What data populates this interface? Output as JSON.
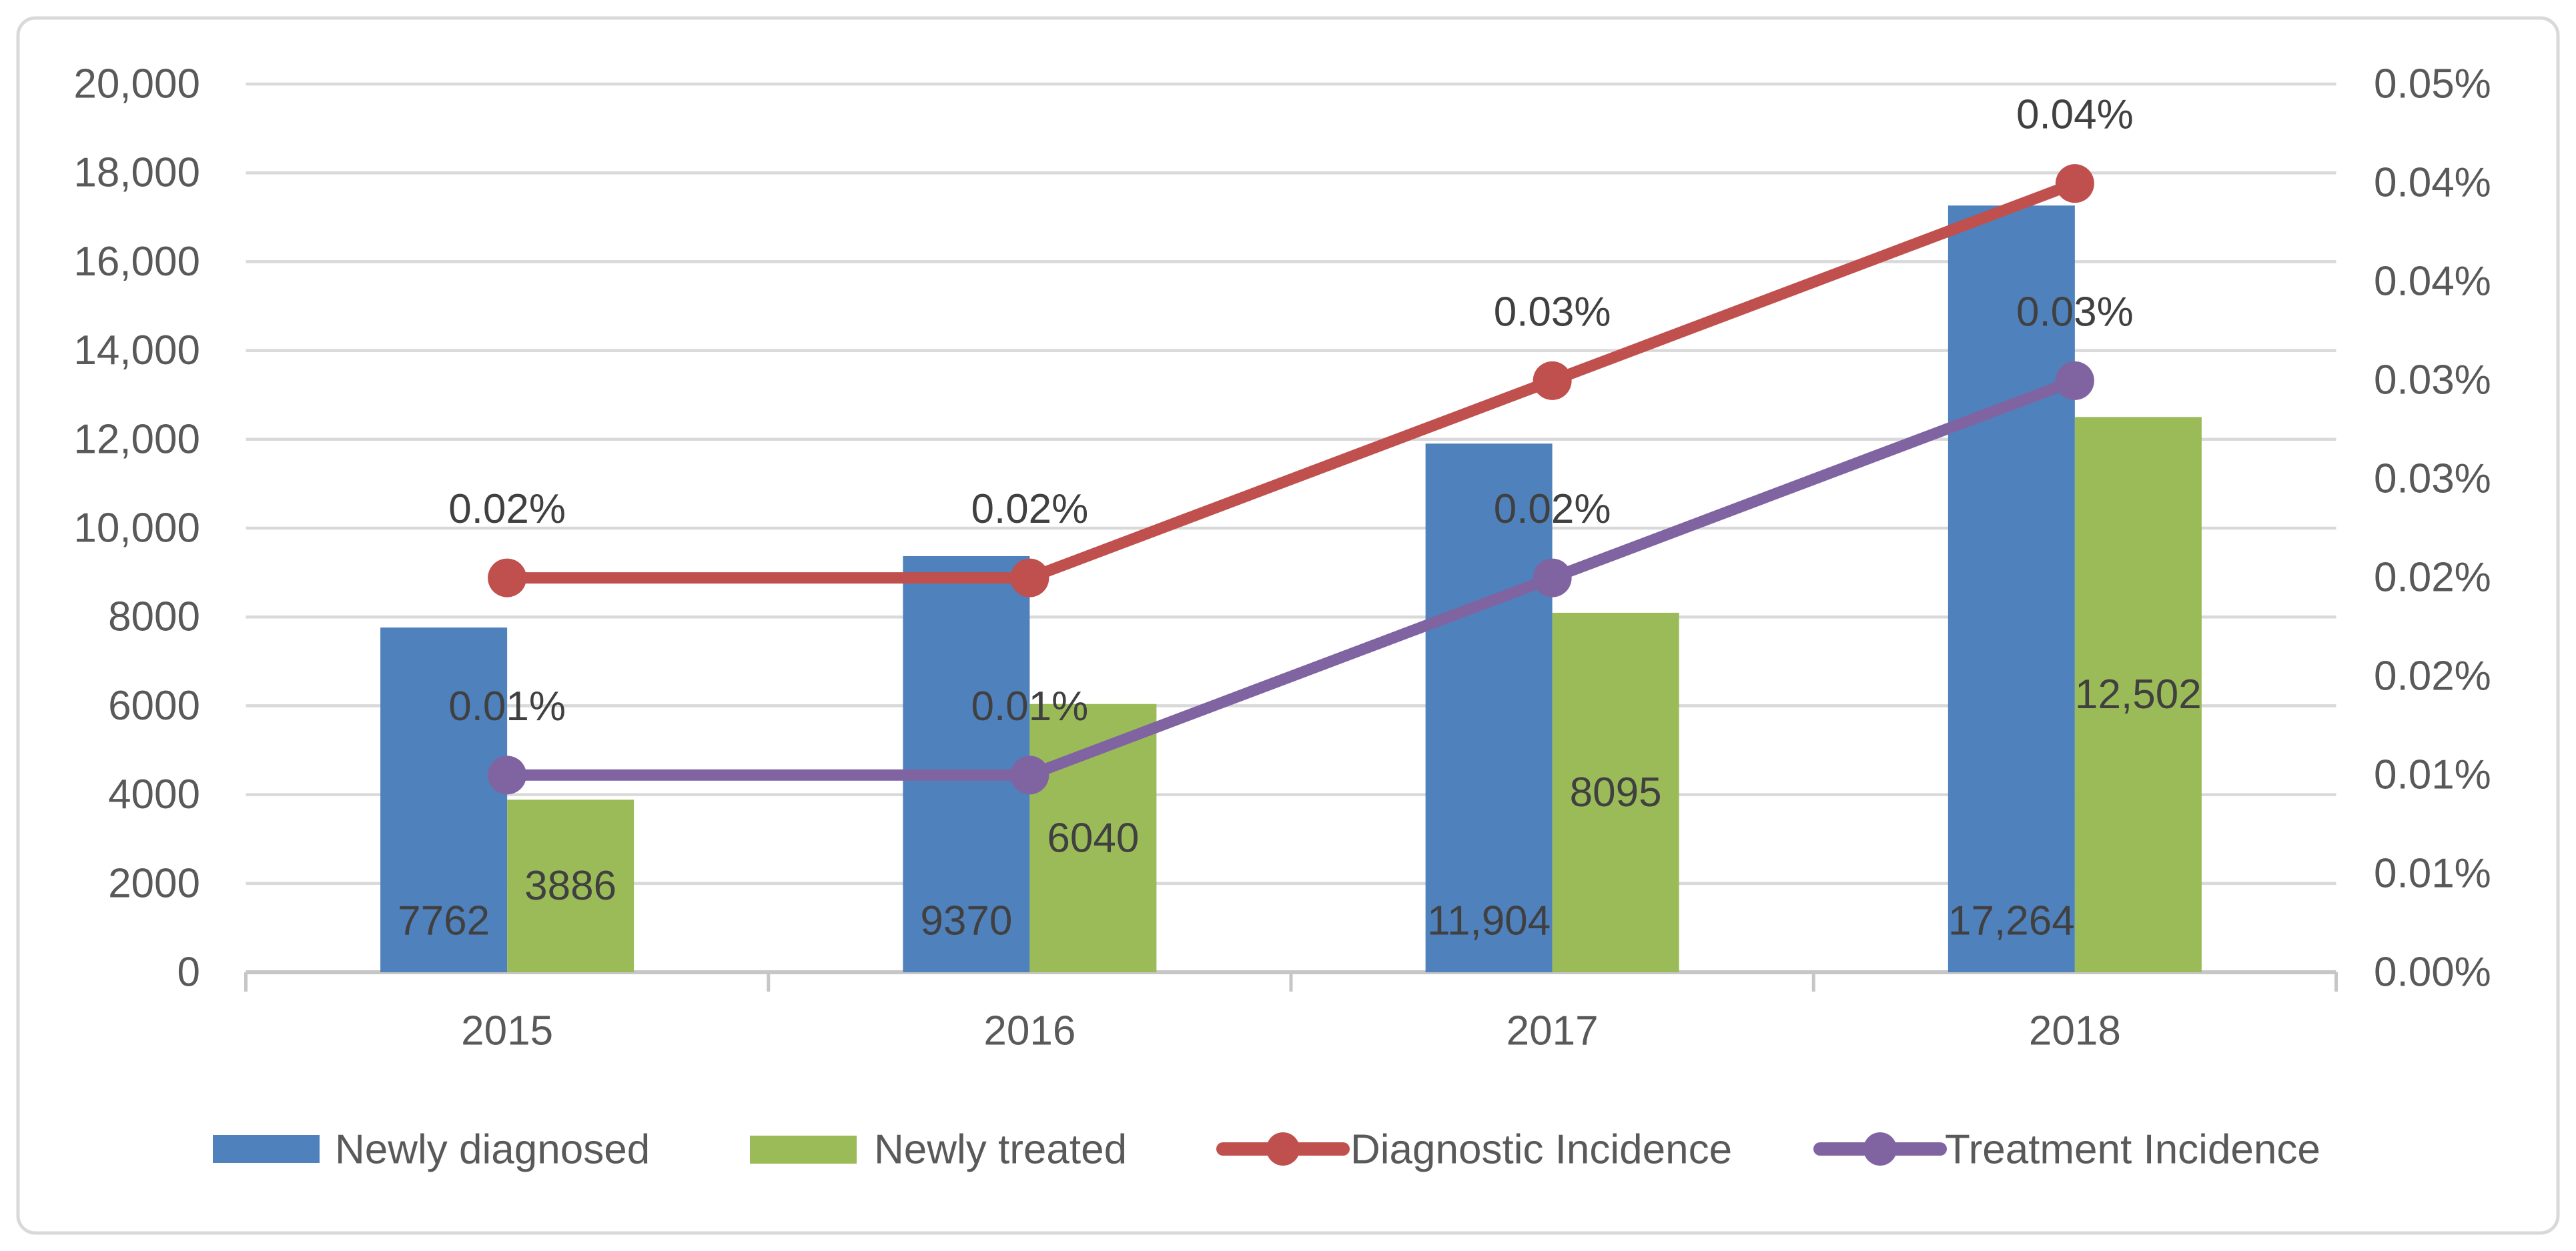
{
  "chart_data": {
    "type": "combo-bar-line",
    "title": "",
    "categories": [
      "2015",
      "2016",
      "2017",
      "2018"
    ],
    "bar_series": [
      {
        "name": "Newly diagnosed",
        "color": "#4f81bd",
        "axis": "left",
        "values": [
          7762,
          9370,
          11904,
          17264
        ],
        "data_labels": [
          "7762",
          "9370",
          "11,904",
          "17,264"
        ],
        "label_placement": "inside-base"
      },
      {
        "name": "Newly treated",
        "color": "#9bbb59",
        "axis": "left",
        "values": [
          3886,
          6040,
          8095,
          12502
        ],
        "data_labels": [
          "3886",
          "6040",
          "8095",
          "12,502"
        ],
        "label_placement": "inside-center"
      }
    ],
    "line_series": [
      {
        "name": "Diagnostic Incidence",
        "color": "#c0504d",
        "axis": "right",
        "values_pct": [
          0.0222,
          0.0222,
          0.0333,
          0.0444
        ],
        "data_labels": [
          "0.02%",
          "0.02%",
          "0.03%",
          "0.04%"
        ]
      },
      {
        "name": "Treatment Incidence",
        "color": "#8064a2",
        "axis": "right",
        "values_pct": [
          0.0111,
          0.0111,
          0.0222,
          0.0333
        ],
        "data_labels": [
          "0.01%",
          "0.01%",
          "0.02%",
          "0.03%"
        ]
      }
    ],
    "left_axis": {
      "min": 0,
      "max": 20000,
      "step": 2000,
      "labels_bottom_to_top": [
        "0",
        "2000",
        "4000",
        "6000",
        "8000",
        "10,000",
        "12,000",
        "14,000",
        "16,000",
        "18,000",
        "20,000"
      ]
    },
    "right_axis": {
      "min": 0,
      "max": 0.05,
      "unit": "percent",
      "labels_top_to_bottom": [
        "0.05%",
        "0.04%",
        "0.04%",
        "0.03%",
        "0.03%",
        "0.02%",
        "0.02%",
        "0.01%",
        "0.01%",
        "0.00%"
      ]
    },
    "gridlines": true,
    "legend_position": "bottom",
    "legend": [
      {
        "label": "Newly diagnosed",
        "marker": "rect",
        "color": "#4f81bd"
      },
      {
        "label": "Newly treated",
        "marker": "rect",
        "color": "#9bbb59"
      },
      {
        "label": "Diagnostic Incidence",
        "marker": "line-dot",
        "color": "#c0504d"
      },
      {
        "label": "Treatment Incidence",
        "marker": "line-dot",
        "color": "#8064a2"
      }
    ]
  },
  "style": {
    "background": "#ffffff",
    "border_color": "#d9d9d9",
    "gridline_color": "#d9d9d9",
    "axis_line_color": "#c6c6c6",
    "axis_text_color": "#595959",
    "data_label_color": "#404040"
  }
}
